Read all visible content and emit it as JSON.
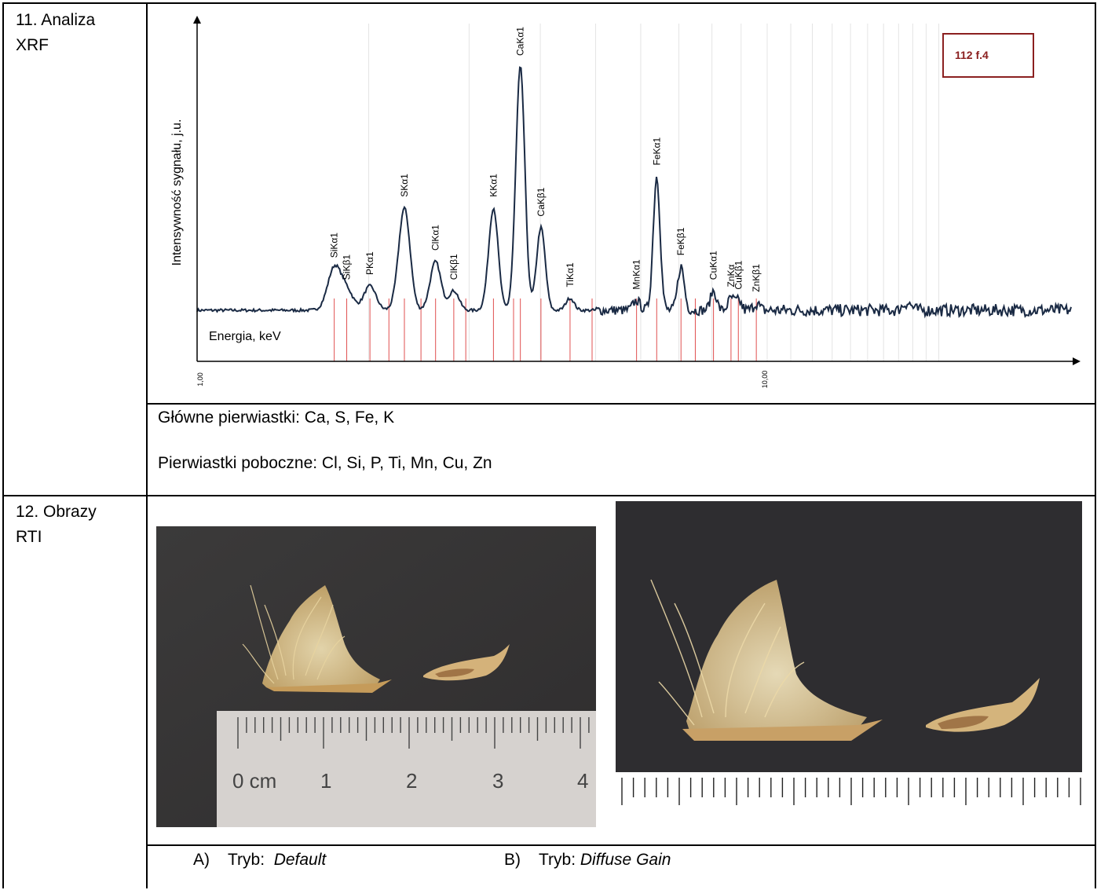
{
  "row11": {
    "label_line1": "11. Analiza",
    "label_line2": "XRF",
    "main_elements": "Główne pierwiastki: Ca, S, Fe, K",
    "minor_elements": "Pierwiastki poboczne: Cl, Si, P, Ti, Mn, Cu, Zn"
  },
  "row12": {
    "label_line1": "12. Obrazy",
    "label_line2": "RTI",
    "caption_a_prefix": "A)",
    "caption_a_mode_label": "Tryb:",
    "caption_a_mode": "Default",
    "caption_b_prefix": "B)",
    "caption_b_mode_label": "Tryb:",
    "caption_b_mode": "Diffuse Gain",
    "ruler_labels": [
      "0 cm",
      "1",
      "2",
      "3",
      "4"
    ]
  },
  "chart_data": {
    "type": "line",
    "sample_label": "112 f.4",
    "ylabel": "Intensywność sygnału, j.u.",
    "xlabel": "Energia, keV",
    "x_scale": "log",
    "xlim": [
      1.0,
      10.0
    ],
    "x_tick_labels": [
      "1,00",
      "10,00"
    ],
    "grid": "vertical",
    "line_color": "#1a2a44",
    "marker_color": "#e05050",
    "label_box_color": "#8b2020",
    "peaks": [
      {
        "label": "SiKα1",
        "energy": 1.74,
        "height": 0.17
      },
      {
        "label": "SiKβ1",
        "energy": 1.83,
        "height": 0.08
      },
      {
        "label": "PKα1",
        "energy": 2.01,
        "height": 0.1
      },
      {
        "label": "SKα1",
        "energy": 2.31,
        "height": 0.42
      },
      {
        "label": "ClKα1",
        "energy": 2.62,
        "height": 0.2
      },
      {
        "label": "ClKβ1",
        "energy": 2.82,
        "height": 0.08
      },
      {
        "label": "KKα1",
        "energy": 3.31,
        "height": 0.42
      },
      {
        "label": "CaKα1",
        "energy": 3.69,
        "height": 1.0
      },
      {
        "label": "CaKβ1",
        "energy": 4.01,
        "height": 0.34
      },
      {
        "label": "TiKα1",
        "energy": 4.51,
        "height": 0.05
      },
      {
        "label": "MnKα1",
        "energy": 5.9,
        "height": 0.04
      },
      {
        "label": "FeKα1",
        "energy": 6.4,
        "height": 0.55
      },
      {
        "label": "FeKβ1",
        "energy": 7.06,
        "height": 0.18
      },
      {
        "label": "CuKα1",
        "energy": 8.05,
        "height": 0.08
      },
      {
        "label": "ZnKα",
        "energy": 8.64,
        "height": 0.05
      },
      {
        "label": "CuKβ1",
        "energy": 8.9,
        "height": 0.04
      },
      {
        "label": "ZnKβ1",
        "energy": 9.57,
        "height": 0.03
      }
    ],
    "extra_markers_keV": [
      2.17,
      2.47,
      2.96,
      3.59,
      4.93,
      7.48
    ]
  }
}
